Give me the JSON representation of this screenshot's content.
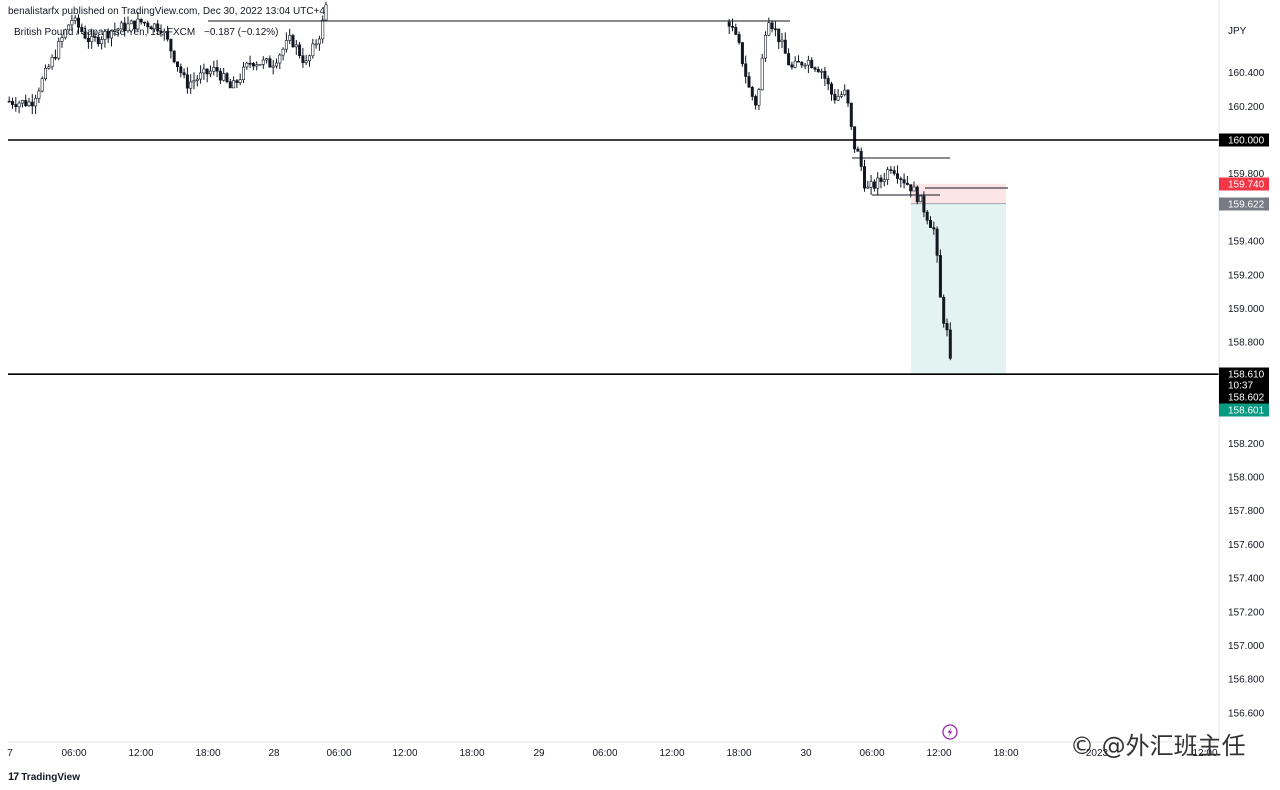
{
  "header": {
    "published": "benalistarfx published on TradingView.com, Dec 30, 2022 13:04 UTC+4",
    "symbol": "British Pound / Japanese Yen, 15, FXCM",
    "change": "−0.187 (−0.12%)"
  },
  "colors": {
    "up": "#ffffff",
    "down": "#131722",
    "stop_zone": "#fbe5e6",
    "target_zone": "#e3f3f1",
    "stop_tag": "#f23645",
    "entry_tag": "#787b86",
    "price_tag": "#000000",
    "bid_tag": "#089981",
    "lightning": "#9c27b0"
  },
  "chart_data": {
    "type": "candlestick",
    "symbol": "GBPJPY",
    "interval": "15",
    "currency_label": "JPY",
    "ylim": [
      156.48,
      160.85
    ],
    "y_ticks": [
      "160.400",
      "160.200",
      "159.800",
      "159.400",
      "159.200",
      "159.000",
      "158.800",
      "158.200",
      "158.000",
      "157.800",
      "157.600",
      "157.400",
      "157.200",
      "157.000",
      "156.800",
      "156.600"
    ],
    "x_ticks": [
      "7",
      "06:00",
      "12:00",
      "18:00",
      "28",
      "06:00",
      "12:00",
      "18:00",
      "29",
      "06:00",
      "12:00",
      "18:00",
      "30",
      "06:00",
      "12:00",
      "18:00",
      "2023",
      "12:00"
    ],
    "horizontal_levels": [
      160.0,
      158.61
    ],
    "short_position": {
      "entry": 159.622,
      "stop": 159.74,
      "target": 158.61
    },
    "price_tags": [
      {
        "label": "160.000",
        "value": 160.0,
        "style": "level"
      },
      {
        "label": "159.740",
        "value": 159.74,
        "style": "stop"
      },
      {
        "label": "159.622",
        "value": 159.622,
        "style": "entry"
      },
      {
        "label": "158.610",
        "value": 158.61,
        "style": "level"
      },
      {
        "label": "10:37",
        "value": 158.61,
        "style": "countdown"
      },
      {
        "label": "158.602",
        "value": 158.602,
        "style": "last"
      },
      {
        "label": "158.601",
        "value": 158.601,
        "style": "bid"
      }
    ]
  },
  "footer": {
    "brand": "TradingView"
  },
  "watermark": "© @外汇班主任"
}
